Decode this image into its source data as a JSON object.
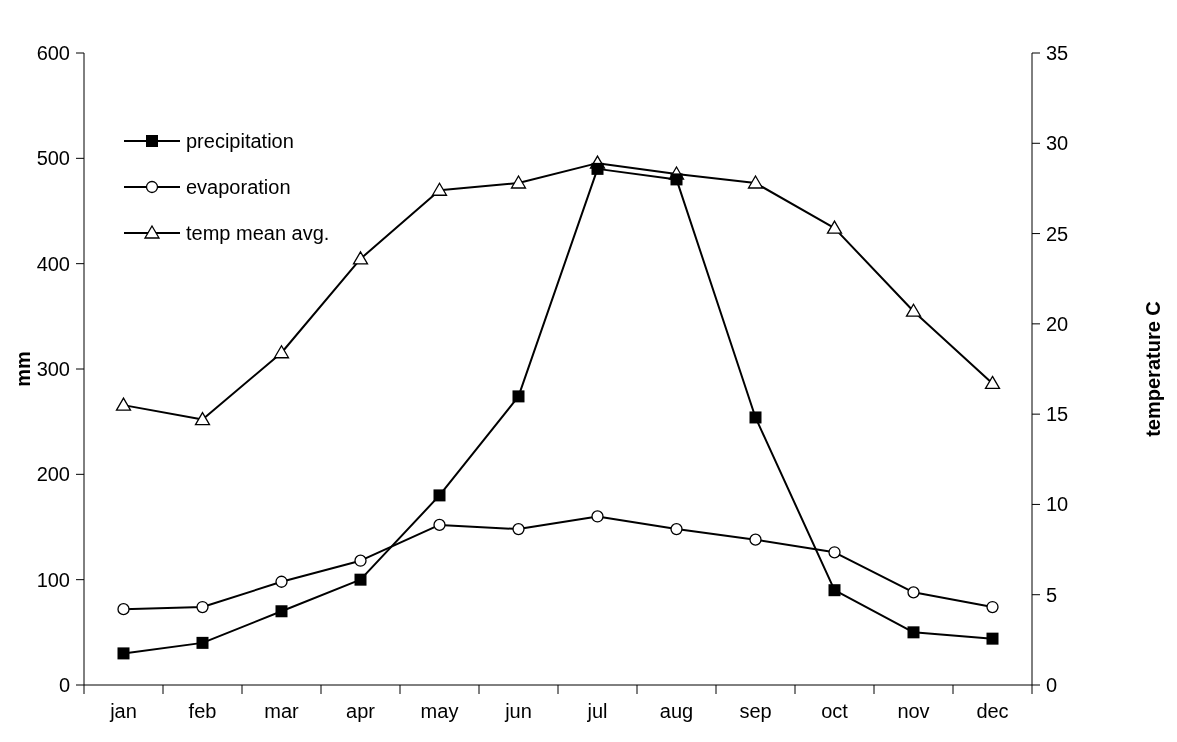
{
  "chart_data": {
    "type": "line",
    "ylabel": "mm",
    "y2label": "temperature C",
    "categories": [
      "jan",
      "feb",
      "mar",
      "apr",
      "may",
      "jun",
      "jul",
      "aug",
      "sep",
      "oct",
      "nov",
      "dec"
    ],
    "ylim": [
      0,
      600
    ],
    "yticks": [
      0,
      100,
      200,
      300,
      400,
      500,
      600
    ],
    "y2lim": [
      0,
      35
    ],
    "y2ticks": [
      0,
      5,
      10,
      15,
      20,
      25,
      30,
      35
    ],
    "grid": false,
    "legend": "top left",
    "series": [
      {
        "name": "precipitation",
        "color": "#000000",
        "marker": "square",
        "values": [
          30,
          40,
          70,
          100,
          180,
          274,
          490,
          480,
          254,
          90,
          50,
          44
        ]
      },
      {
        "name": "evaporation",
        "color": "#000000",
        "marker": "circle",
        "values": [
          72,
          74,
          98,
          118,
          152,
          148,
          160,
          148,
          138,
          126,
          88,
          74
        ]
      },
      {
        "name": "temp mean avg.",
        "color": "#000000",
        "marker": "triangle",
        "axis": "y2",
        "values": [
          15.5,
          14.7,
          18.4,
          23.6,
          27.4,
          27.8,
          28.9,
          28.3,
          27.8,
          25.3,
          20.7,
          16.7
        ]
      }
    ]
  }
}
